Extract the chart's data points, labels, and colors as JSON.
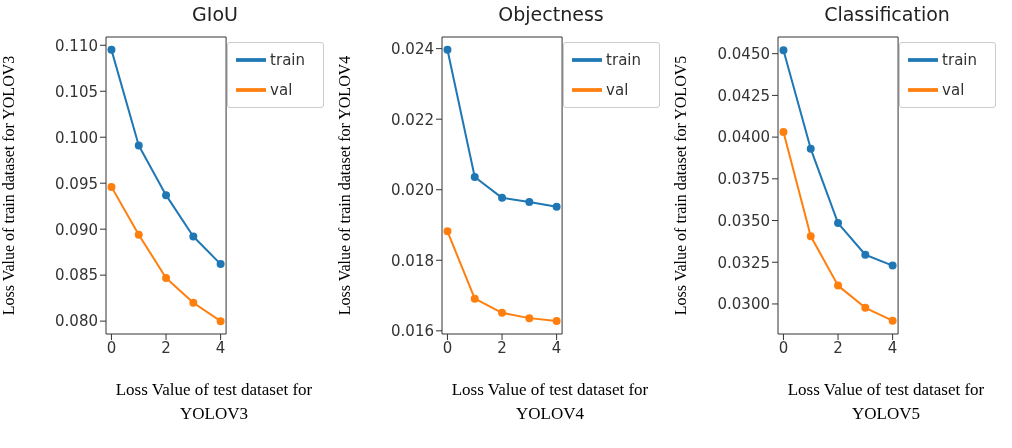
{
  "chart_data": [
    {
      "type": "line",
      "title": "GIoU",
      "xlabel": "Loss Value of test dataset for YOLOV3",
      "ylabel": "Loss Value of train dataset for YOLOV3",
      "x": [
        0,
        1,
        2,
        3,
        4
      ],
      "xlim": [
        -0.2,
        4.2
      ],
      "xticks": [
        0,
        2,
        4
      ],
      "ylim": [
        0.0786,
        0.1109
      ],
      "yticks": [
        {
          "value": 0.08,
          "label": "0.080"
        },
        0.085,
        {
          "value": 0.09,
          "label": "0.090"
        },
        0.095,
        {
          "value": 0.1,
          "label": "0.100"
        },
        0.105,
        {
          "value": 0.11,
          "label": "0.110"
        }
      ],
      "legend": "top right",
      "marker": "circle",
      "line_style": "solid",
      "grid": false,
      "series": [
        {
          "name": "train",
          "color": "#1f77b4",
          "values": [
            0.1095,
            0.0991,
            0.0937,
            0.0892,
            0.0862
          ]
        },
        {
          "name": "val",
          "color": "#ff7f0e",
          "values": [
            0.0946,
            0.0894,
            0.0847,
            0.082,
            0.08
          ]
        }
      ]
    },
    {
      "type": "line",
      "title": "Objectness",
      "xlabel": "Loss Value of test dataset for YOLOV4",
      "ylabel": "Loss Value of train dataset for YOLOV4",
      "x": [
        0,
        1,
        2,
        3,
        4
      ],
      "xlim": [
        -0.2,
        4.2
      ],
      "xticks": [
        0,
        2,
        4
      ],
      "ylim": [
        0.01591,
        0.02433
      ],
      "yticks": [
        0.016,
        0.018,
        {
          "value": 0.02,
          "label": "0.020"
        },
        0.022,
        0.024
      ],
      "legend": "top right",
      "marker": "circle",
      "line_style": "solid",
      "grid": false,
      "series": [
        {
          "name": "train",
          "color": "#1f77b4",
          "values": [
            0.02397,
            0.02036,
            0.01977,
            0.01965,
            0.01952
          ]
        },
        {
          "name": "val",
          "color": "#ff7f0e",
          "values": [
            0.01882,
            0.01691,
            0.01651,
            0.01636,
            0.01628
          ]
        }
      ]
    },
    {
      "type": "line",
      "title": "Classification",
      "xlabel": "Loss Value of test dataset for YOLOV5",
      "ylabel": "Loss Value of train dataset for YOLOV5",
      "x": [
        0,
        1,
        2,
        3,
        4
      ],
      "xlim": [
        -0.2,
        4.2
      ],
      "xticks": [
        0,
        2,
        4
      ],
      "ylim": [
        0.0282,
        0.046
      ],
      "yticks": [
        {
          "value": 0.03,
          "label": "0.0300"
        },
        0.0325,
        {
          "value": 0.035,
          "label": "0.0350"
        },
        0.0375,
        {
          "value": 0.04,
          "label": "0.0400"
        },
        0.0425,
        {
          "value": 0.045,
          "label": "0.0450"
        }
      ],
      "legend": "top right",
      "marker": "circle",
      "line_style": "solid",
      "grid": false,
      "series": [
        {
          "name": "train",
          "color": "#1f77b4",
          "values": [
            0.0452,
            0.0393,
            0.03485,
            0.03295,
            0.0323
          ]
        },
        {
          "name": "val",
          "color": "#ff7f0e",
          "values": [
            0.0403,
            0.03406,
            0.0311,
            0.02977,
            0.029
          ]
        }
      ]
    }
  ]
}
